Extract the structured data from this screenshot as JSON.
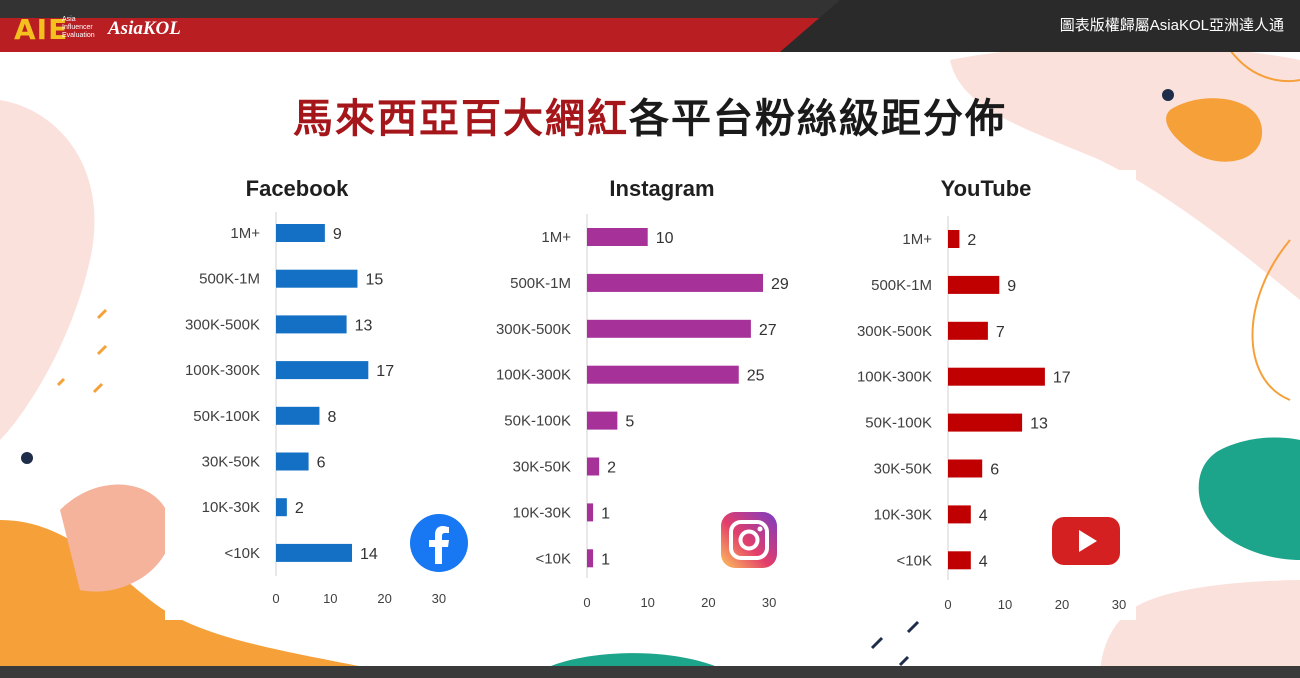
{
  "header": {
    "brand": "AIE",
    "brand_sub": [
      "Asia",
      "Influencer",
      "Evaluation"
    ],
    "brand_kol": "AsiaKOL",
    "copyright": "圖表版權歸屬AsiaKOL亞洲達人通"
  },
  "title": {
    "highlight": "馬來西亞百大網紅",
    "rest": "各平台粉絲級距分佈"
  },
  "colors": {
    "facebook": "#1470c4",
    "instagram": "#a63199",
    "youtube": "#c00000",
    "title_red": "#a5161a",
    "top_bar": "#b81e22"
  },
  "chart_data": [
    {
      "type": "bar",
      "orientation": "horizontal",
      "title": "Facebook",
      "categories": [
        "1M+",
        "500K-1M",
        "300K-500K",
        "100K-300K",
        "50K-100K",
        "30K-50K",
        "10K-30K",
        "<10K"
      ],
      "values": [
        9,
        15,
        13,
        17,
        8,
        6,
        2,
        14
      ],
      "xlim": [
        0,
        30
      ],
      "xticks": [
        "0",
        "10",
        "20",
        "30"
      ],
      "icon": "facebook-logo-icon"
    },
    {
      "type": "bar",
      "orientation": "horizontal",
      "title": "Instagram",
      "categories": [
        "1M+",
        "500K-1M",
        "300K-500K",
        "100K-300K",
        "50K-100K",
        "30K-50K",
        "10K-30K",
        "<10K"
      ],
      "values": [
        10,
        29,
        27,
        25,
        5,
        2,
        1,
        1
      ],
      "xlim": [
        0,
        30
      ],
      "xticks": [
        "0",
        "10",
        "20",
        "30"
      ],
      "icon": "instagram-logo-icon"
    },
    {
      "type": "bar",
      "orientation": "horizontal",
      "title": "YouTube",
      "categories": [
        "1M+",
        "500K-1M",
        "300K-500K",
        "100K-300K",
        "50K-100K",
        "30K-50K",
        "10K-30K",
        "<10K"
      ],
      "values": [
        2,
        9,
        7,
        17,
        13,
        6,
        4,
        4
      ],
      "xlim": [
        0,
        30
      ],
      "xticks": [
        "0",
        "10",
        "20",
        "30"
      ],
      "icon": "youtube-logo-icon"
    }
  ]
}
